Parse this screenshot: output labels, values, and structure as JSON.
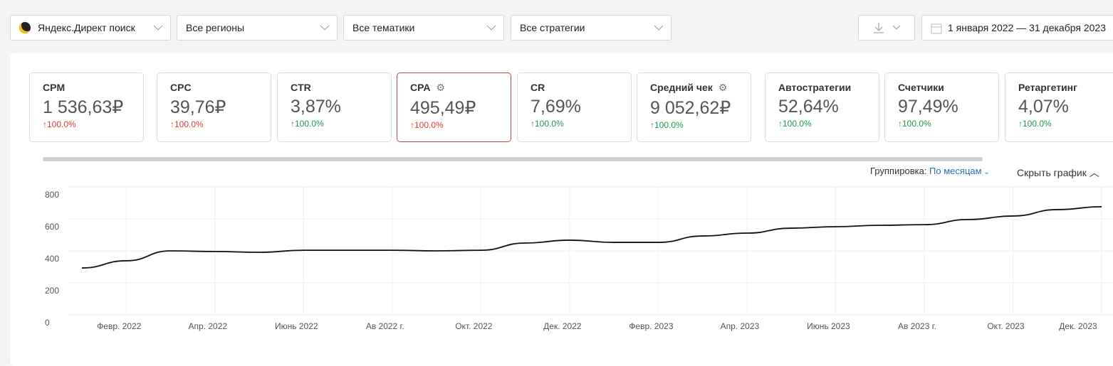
{
  "filters": [
    "Яндекс.Директ поиск",
    "Все регионы",
    "Все тематики",
    "Все стратегии"
  ],
  "date_range": "1 января 2022 — 31 декабря 2023",
  "metrics": [
    {
      "name": "CPM",
      "value": "1 536,63₽",
      "change": "↑100.0%",
      "color": "#e53935"
    },
    {
      "name": "CPC",
      "value": "39,76₽",
      "change": "↑100.0%",
      "color": "#e53935"
    },
    {
      "name": "CTR",
      "value": "3,87%",
      "change": "↑100.0%",
      "color": "#1a9a4a"
    },
    {
      "name": "CPA",
      "value": "495,49₽",
      "change": "↑100.0%",
      "color": "#e53935",
      "settings": true,
      "selected": true
    },
    {
      "name": "CR",
      "value": "7,69%",
      "change": "↑100.0%",
      "color": "#1a9a4a"
    },
    {
      "name": "Средний чек",
      "value": "9 052,62₽",
      "change": "↑100.0%",
      "color": "#1a9a4a",
      "settings": true
    },
    {
      "name": "Автостратегии",
      "value": "52,64%",
      "change": "↑100.0%",
      "color": "#1a9a4a"
    },
    {
      "name": "Счетчики",
      "value": "97,49%",
      "change": "↑100.0%",
      "color": "#1a9a4a"
    },
    {
      "name": "Ретаргетинг",
      "value": "4,07%",
      "change": "↑100.0%",
      "color": "#1a9a4a"
    }
  ],
  "grouping": {
    "label": "Группировка:",
    "value": "По месяцам",
    "hide": "Скрыть график"
  },
  "chart_data": {
    "type": "line",
    "categories": [
      null,
      "Февр. 2022",
      null,
      "Апр. 2022",
      null,
      "Июнь 2022",
      null,
      "Ав 2022 г.",
      null,
      "Окт. 2022",
      null,
      "Дек. 2022",
      null,
      "Февр. 2023",
      null,
      "Апр. 2023",
      null,
      "Июнь 2023",
      null,
      "Ав 2023 г.",
      null,
      "Окт. 2023",
      null,
      "Дек. 2023"
    ],
    "values": [
      293,
      338,
      400,
      396,
      391,
      404,
      404,
      404,
      400,
      404,
      449,
      467,
      453,
      453,
      493,
      511,
      542,
      551,
      560,
      564,
      596,
      618,
      658,
      676
    ],
    "color": "#111111",
    "ylim": [
      0,
      800
    ],
    "yticks": [
      0,
      200,
      400,
      600,
      800
    ],
    "grid": true
  }
}
